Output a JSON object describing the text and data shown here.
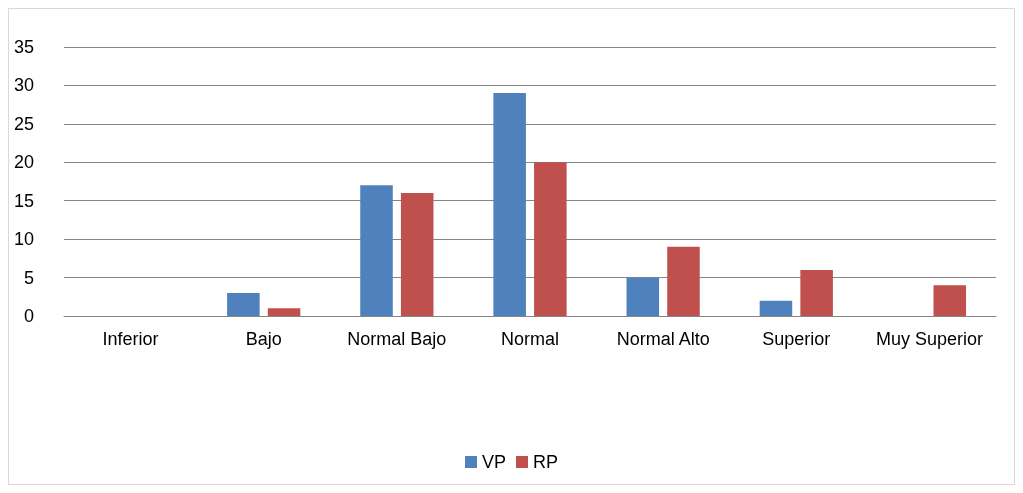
{
  "chart_data": {
    "type": "bar",
    "categories": [
      "Inferior",
      "Bajo",
      "Normal Bajo",
      "Normal",
      "Normal Alto",
      "Superior",
      "Muy Superior"
    ],
    "series": [
      {
        "name": "VP",
        "color": "#4f81bd",
        "values": [
          0,
          3,
          17,
          29,
          5,
          2,
          0
        ]
      },
      {
        "name": "RP",
        "color": "#c0504d",
        "values": [
          0,
          1,
          16,
          20,
          9,
          6,
          4
        ]
      }
    ],
    "ylim": [
      0,
      35
    ],
    "yticks": [
      0,
      5,
      10,
      15,
      20,
      25,
      30,
      35
    ],
    "grid": "y",
    "legend": "bottom"
  }
}
